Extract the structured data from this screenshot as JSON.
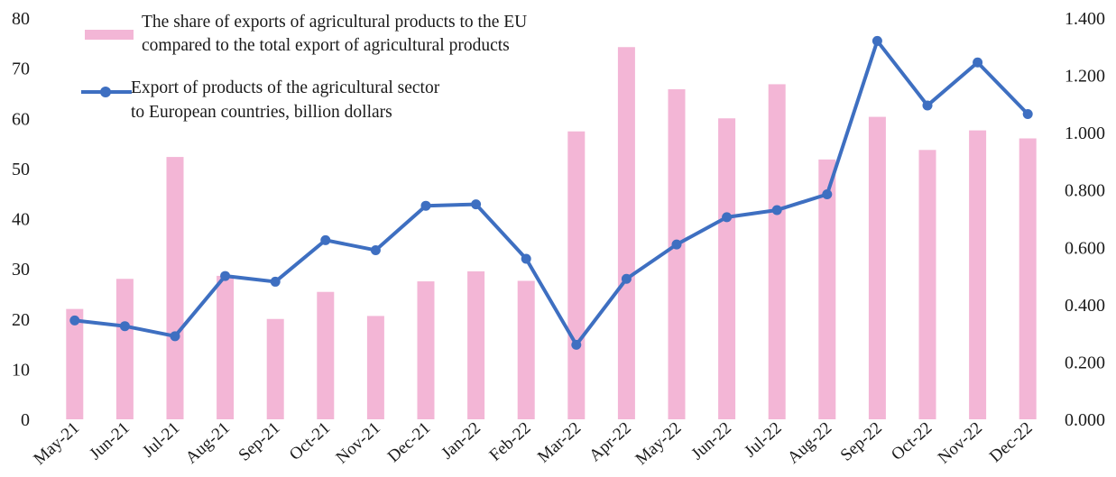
{
  "chart_data": {
    "type": "bar",
    "categories": [
      "May-21",
      "Jun-21",
      "Jul-21",
      "Aug-21",
      "Sep-21",
      "Oct-21",
      "Nov-21",
      "Dec-21",
      "Jan-22",
      "Feb-22",
      "Mar-22",
      "Apr-22",
      "May-22",
      "Jun-22",
      "Jul-22",
      "Aug-22",
      "Sep-22",
      "Oct-22",
      "Nov-22",
      "Dec-22"
    ],
    "series": [
      {
        "name": "The share of exports of agricultural products to the EU compared to the total export of agricultural products",
        "kind": "bar",
        "axis": "left",
        "color": "#f3b6d6",
        "values": [
          22,
          28,
          52.3,
          28.6,
          20,
          25.4,
          20.6,
          27.5,
          29.5,
          27.6,
          57.4,
          74.2,
          65.8,
          60,
          66.8,
          51.8,
          60.3,
          53.7,
          57.6,
          56
        ]
      },
      {
        "name": "Export of products of the agricultural sector to European countries, billion dollars",
        "kind": "line",
        "axis": "right",
        "color": "#3e6fc1",
        "values": [
          0.345,
          0.325,
          0.29,
          0.5,
          0.48,
          0.625,
          0.59,
          0.745,
          0.75,
          0.56,
          0.26,
          0.49,
          0.61,
          0.705,
          0.73,
          0.785,
          1.32,
          1.095,
          1.245,
          1.065
        ]
      }
    ],
    "y_left": {
      "min": 0,
      "max": 80,
      "ticks": [
        "0",
        "10",
        "20",
        "30",
        "40",
        "50",
        "60",
        "70",
        "80"
      ]
    },
    "y_right": {
      "min": 0,
      "max": 1.4,
      "ticks": [
        "0.000",
        "0.200",
        "0.400",
        "0.600",
        "0.800",
        "1.000",
        "1.200",
        "1.400"
      ]
    },
    "legend": {
      "bar_label_line1": "The share of exports of agricultural products to the EU",
      "bar_label_line2": "compared to the total export of agricultural products",
      "line_label_line1": "Export of products of the agricultural sector",
      "line_label_line2": "to European countries, billion dollars",
      "placement": "top-left"
    },
    "grid": false
  }
}
